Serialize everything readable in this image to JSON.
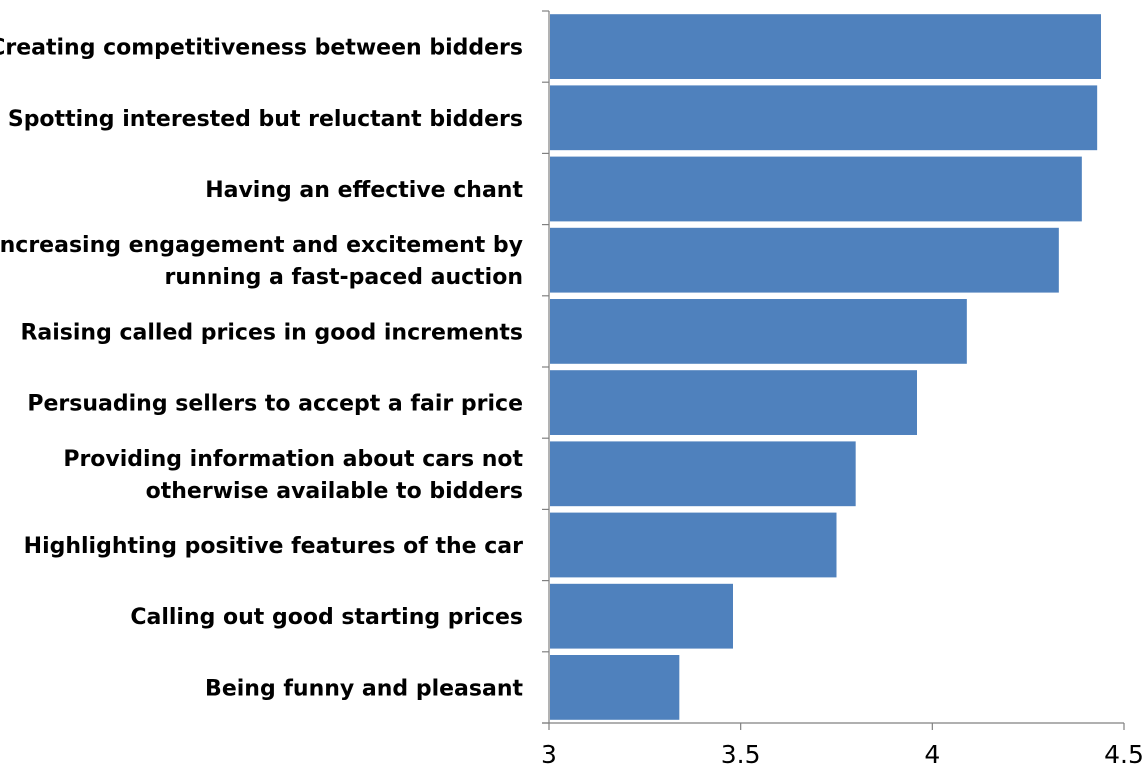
{
  "chart_data": {
    "type": "bar",
    "orientation": "horizontal",
    "categories": [
      "Creating competitiveness between bidders",
      "Spotting interested but reluctant bidders",
      "Having an effective chant",
      "Increasing engagement and excitement by running a fast-paced auction",
      "Raising called prices in good increments",
      "Persuading sellers to accept a fair price",
      "Providing information about cars not otherwise available to bidders",
      "Highlighting positive features of the car",
      "Calling out good starting prices",
      "Being funny and pleasant"
    ],
    "category_display_lines": [
      [
        "Creating competitiveness between bidders"
      ],
      [
        "Spotting interested but reluctant bidders"
      ],
      [
        "Having an effective chant"
      ],
      [
        "Increasing engagement and excitement by",
        "running a fast-paced auction"
      ],
      [
        "Raising called prices in good increments"
      ],
      [
        "Persuading sellers to accept a fair price"
      ],
      [
        "Providing information about cars not",
        "otherwise available to bidders"
      ],
      [
        "Highlighting positive features of the car"
      ],
      [
        "Calling out good starting prices"
      ],
      [
        "Being funny and pleasant"
      ]
    ],
    "values": [
      4.44,
      4.43,
      4.39,
      4.33,
      4.09,
      3.96,
      3.8,
      3.75,
      3.48,
      3.34
    ],
    "xlim": [
      3,
      4.5
    ],
    "x_ticks": [
      3,
      3.5,
      4,
      4.5
    ],
    "x_tick_labels": [
      "3",
      "3.5",
      "4",
      "4.5"
    ],
    "title": "",
    "xlabel": "",
    "ylabel": "",
    "grid": false,
    "legend": "none",
    "bar_color": "#4f81bd",
    "axis_color": "#808080"
  }
}
